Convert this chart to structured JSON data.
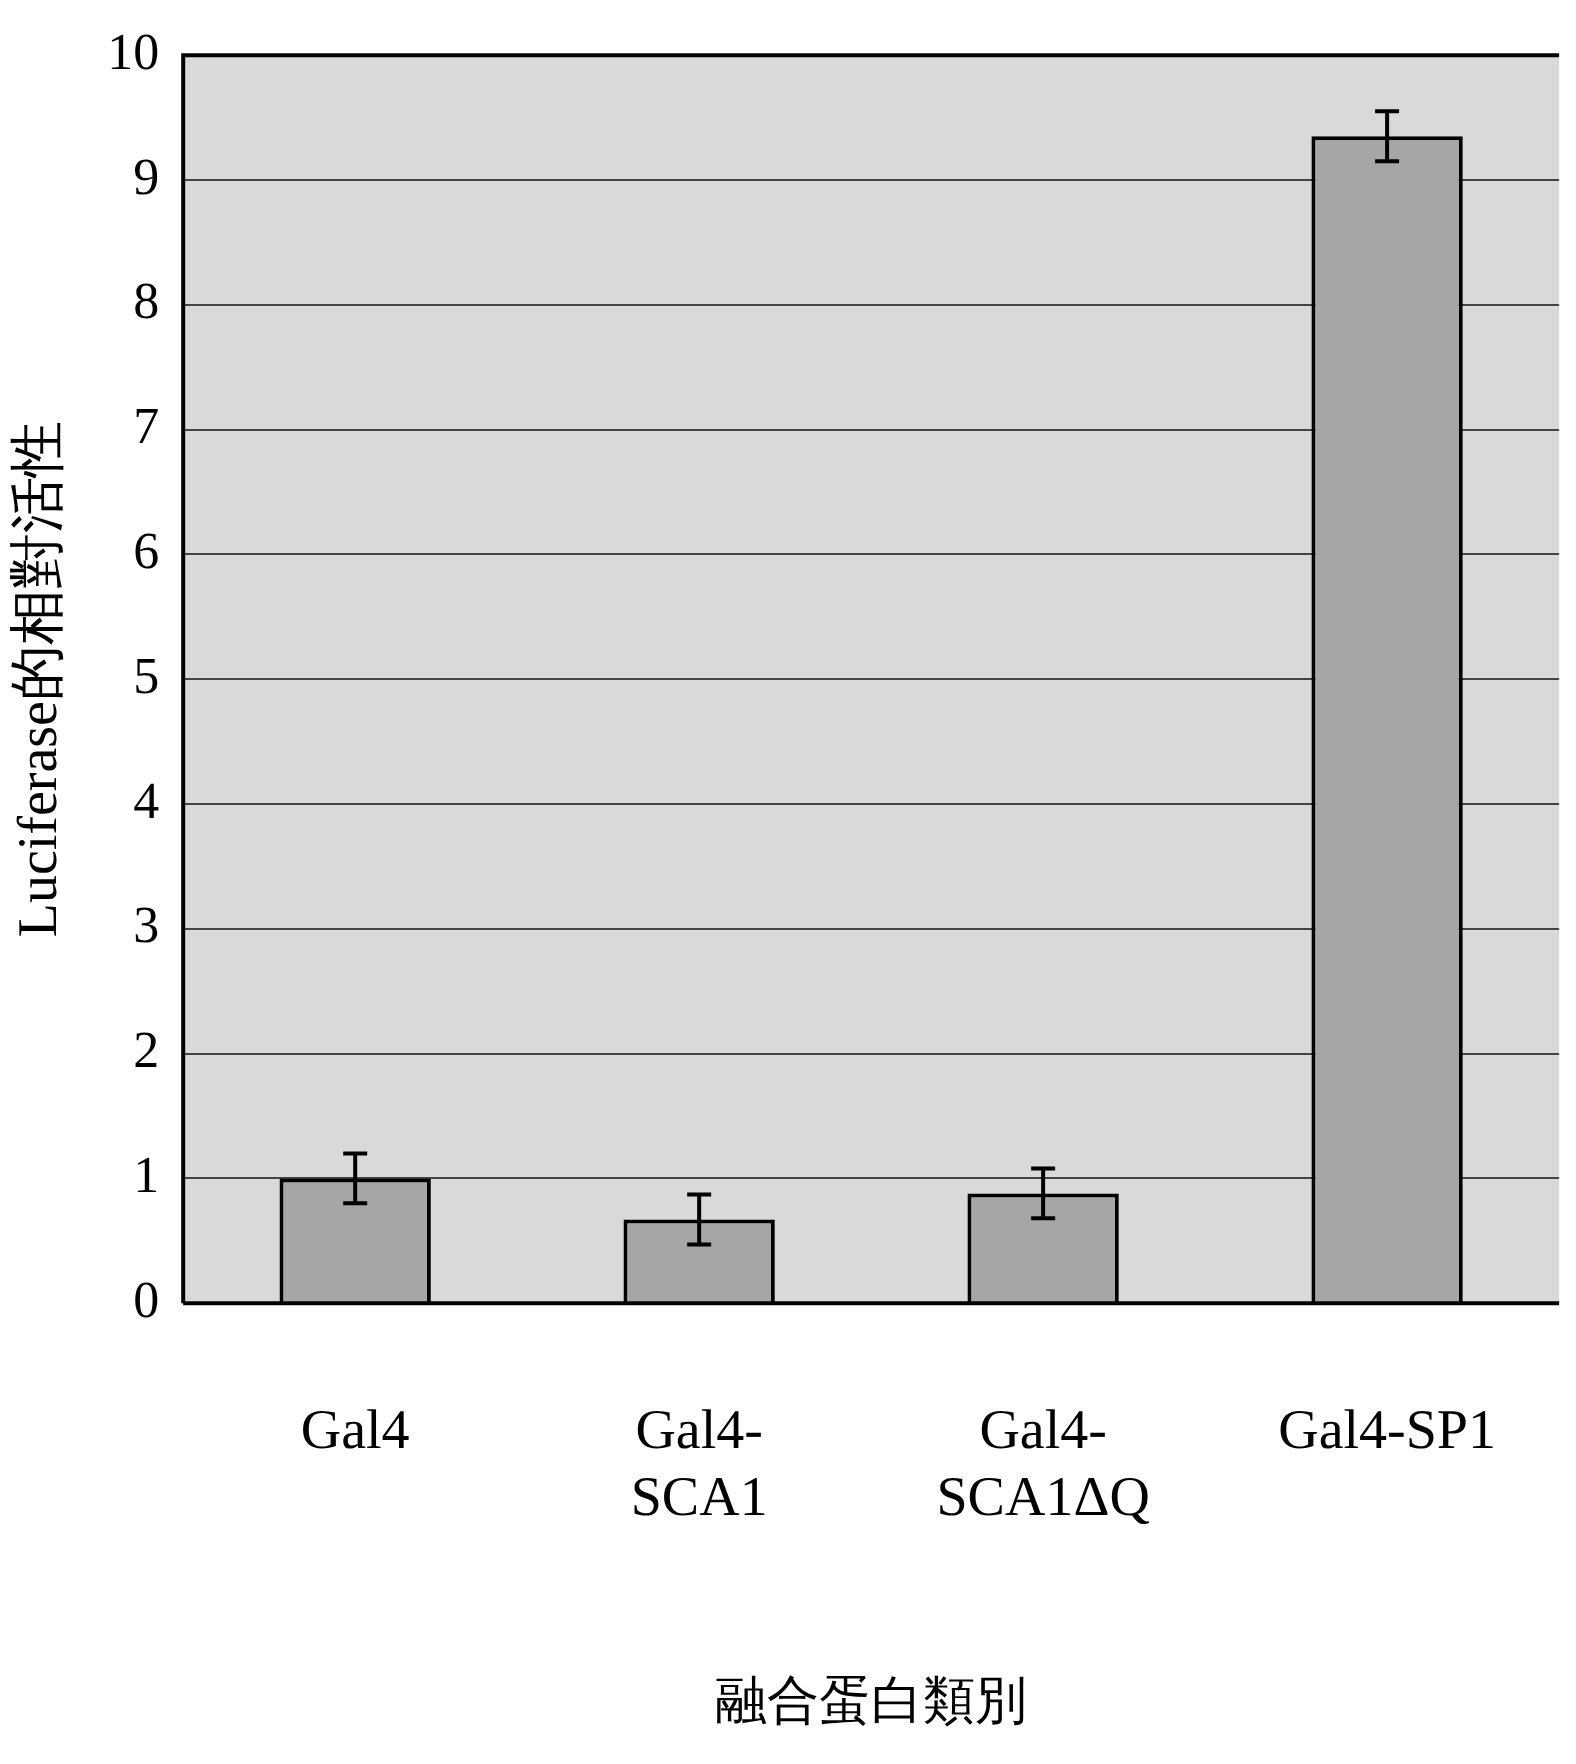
{
  "chart_data": {
    "type": "bar",
    "xlabel": "融合蛋白類別",
    "ylabel": "Luciferase的相對活性",
    "categories": [
      "Gal4",
      "Gal4-\nSCA1",
      "Gal4-\nSCA1ΔQ",
      "Gal4-SP1"
    ],
    "values": [
      1.0,
      0.67,
      0.88,
      9.35
    ],
    "errors": [
      0.2,
      0.2,
      0.2,
      0.2
    ],
    "color": "#a6a6a6",
    "ylim": [
      0,
      10
    ],
    "yticks": [
      0,
      1,
      2,
      3,
      4,
      5,
      6,
      7,
      8,
      9,
      10
    ],
    "grid": "y",
    "legend": false
  }
}
